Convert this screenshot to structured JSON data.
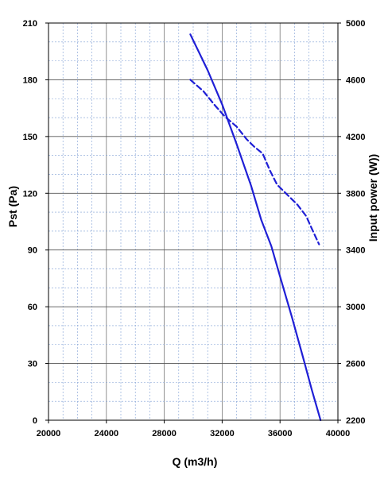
{
  "chart_data": {
    "type": "line",
    "xlabel": "Q (m3/h)",
    "ylabel": "Pst (Pa)",
    "y2label": "Input power  (W))",
    "xlim": [
      20000,
      40000
    ],
    "ylim": [
      0,
      210
    ],
    "y2lim": [
      2200,
      5000
    ],
    "x_ticks": [
      "20000",
      "24000",
      "28000",
      "32000",
      "36000",
      "40000"
    ],
    "y_ticks": [
      "0",
      "30",
      "60",
      "90",
      "120",
      "150",
      "180",
      "210"
    ],
    "y2_ticks": [
      "2200",
      "2600",
      "3000",
      "3400",
      "3800",
      "4200",
      "4600",
      "5000"
    ],
    "grid": true,
    "series": [
      {
        "axis": "left",
        "style": "solid",
        "color": "#1f1fd6",
        "x": [
          29800,
          31000,
          32000,
          33000,
          34000,
          34700,
          35400,
          36000,
          36800,
          37600,
          38200,
          38800
        ],
        "y": [
          204,
          185,
          167,
          146,
          124,
          106,
          92,
          76,
          55,
          33,
          16,
          0
        ]
      },
      {
        "axis": "right",
        "style": "dashed",
        "color": "#1f1fd6",
        "x": [
          29800,
          30700,
          31500,
          32200,
          33000,
          33700,
          34200,
          34800,
          35300,
          35800,
          36500,
          37200,
          37800,
          38200,
          38700
        ],
        "y": [
          4600,
          4520,
          4420,
          4340,
          4270,
          4180,
          4130,
          4080,
          3960,
          3860,
          3790,
          3720,
          3640,
          3550,
          3440
        ]
      }
    ]
  }
}
